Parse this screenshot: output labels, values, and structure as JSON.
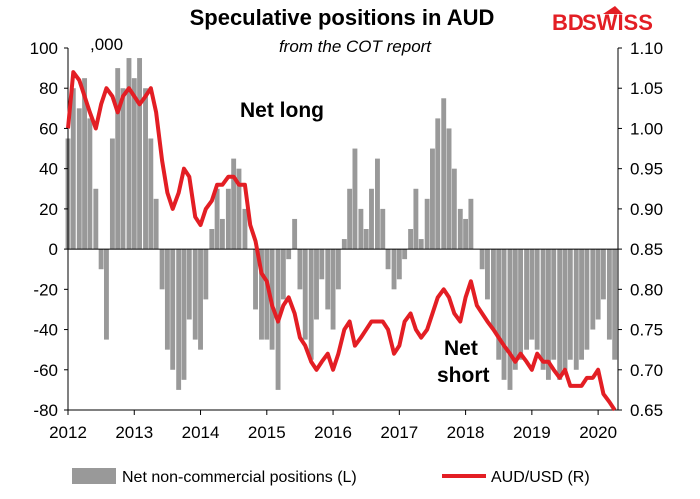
{
  "chart_data": {
    "type": "bar+line",
    "title": "Speculative positions in AUD",
    "subtitle": "from the COT report",
    "left_axis_unit": ",000",
    "ylim_left": [
      -80,
      100
    ],
    "yticks_left": [
      "100",
      "80",
      "60",
      "40",
      "20",
      "0",
      "-20",
      "-40",
      "-60",
      "-80"
    ],
    "ylim_right": [
      0.65,
      1.1
    ],
    "yticks_right": [
      "1.10",
      "1.05",
      "1.00",
      "0.95",
      "0.90",
      "0.85",
      "0.80",
      "0.75",
      "0.70",
      "0.65"
    ],
    "xlim": [
      2012.0,
      2020.3
    ],
    "xticks": [
      "2012",
      "2013",
      "2014",
      "2015",
      "2016",
      "2017",
      "2018",
      "2019",
      "2020"
    ],
    "annotations": {
      "net_long": "Net long",
      "net_short_1": "Net",
      "net_short_2": "short"
    },
    "series": [
      {
        "name": "Net non-commercial positions (L)",
        "kind": "bar",
        "color": "#999999",
        "points": [
          [
            2012.0,
            55
          ],
          [
            2012.08,
            80
          ],
          [
            2012.17,
            70
          ],
          [
            2012.25,
            85
          ],
          [
            2012.33,
            65
          ],
          [
            2012.42,
            30
          ],
          [
            2012.5,
            -10
          ],
          [
            2012.58,
            -45
          ],
          [
            2012.67,
            55
          ],
          [
            2012.75,
            90
          ],
          [
            2012.83,
            80
          ],
          [
            2012.92,
            95
          ],
          [
            2013.0,
            85
          ],
          [
            2013.08,
            95
          ],
          [
            2013.17,
            80
          ],
          [
            2013.25,
            55
          ],
          [
            2013.33,
            25
          ],
          [
            2013.42,
            -20
          ],
          [
            2013.5,
            -50
          ],
          [
            2013.58,
            -60
          ],
          [
            2013.67,
            -70
          ],
          [
            2013.75,
            -65
          ],
          [
            2013.83,
            -35
          ],
          [
            2013.92,
            -45
          ],
          [
            2014.0,
            -50
          ],
          [
            2014.08,
            -25
          ],
          [
            2014.17,
            10
          ],
          [
            2014.25,
            30
          ],
          [
            2014.33,
            15
          ],
          [
            2014.42,
            30
          ],
          [
            2014.5,
            45
          ],
          [
            2014.58,
            40
          ],
          [
            2014.67,
            20
          ],
          [
            2014.75,
            0
          ],
          [
            2014.83,
            -30
          ],
          [
            2014.92,
            -45
          ],
          [
            2015.0,
            -45
          ],
          [
            2015.08,
            -50
          ],
          [
            2015.17,
            -70
          ],
          [
            2015.25,
            -25
          ],
          [
            2015.33,
            -5
          ],
          [
            2015.42,
            15
          ],
          [
            2015.5,
            -20
          ],
          [
            2015.58,
            -45
          ],
          [
            2015.67,
            -55
          ],
          [
            2015.75,
            -35
          ],
          [
            2015.83,
            -15
          ],
          [
            2015.92,
            -30
          ],
          [
            2016.0,
            -40
          ],
          [
            2016.08,
            -20
          ],
          [
            2016.17,
            5
          ],
          [
            2016.25,
            30
          ],
          [
            2016.33,
            50
          ],
          [
            2016.42,
            20
          ],
          [
            2016.5,
            10
          ],
          [
            2016.58,
            30
          ],
          [
            2016.67,
            45
          ],
          [
            2016.75,
            20
          ],
          [
            2016.83,
            -10
          ],
          [
            2016.92,
            -20
          ],
          [
            2017.0,
            -15
          ],
          [
            2017.08,
            -5
          ],
          [
            2017.17,
            10
          ],
          [
            2017.25,
            30
          ],
          [
            2017.33,
            5
          ],
          [
            2017.42,
            25
          ],
          [
            2017.5,
            50
          ],
          [
            2017.58,
            65
          ],
          [
            2017.67,
            75
          ],
          [
            2017.75,
            60
          ],
          [
            2017.83,
            40
          ],
          [
            2017.92,
            20
          ],
          [
            2018.0,
            15
          ],
          [
            2018.08,
            25
          ],
          [
            2018.17,
            0
          ],
          [
            2018.25,
            -10
          ],
          [
            2018.33,
            -25
          ],
          [
            2018.42,
            -40
          ],
          [
            2018.5,
            -55
          ],
          [
            2018.58,
            -65
          ],
          [
            2018.67,
            -70
          ],
          [
            2018.75,
            -60
          ],
          [
            2018.83,
            -55
          ],
          [
            2018.92,
            -50
          ],
          [
            2019.0,
            -45
          ],
          [
            2019.08,
            -50
          ],
          [
            2019.17,
            -60
          ],
          [
            2019.25,
            -65
          ],
          [
            2019.33,
            -55
          ],
          [
            2019.42,
            -65
          ],
          [
            2019.5,
            -60
          ],
          [
            2019.58,
            -55
          ],
          [
            2019.67,
            -60
          ],
          [
            2019.75,
            -55
          ],
          [
            2019.83,
            -50
          ],
          [
            2019.92,
            -40
          ],
          [
            2020.0,
            -35
          ],
          [
            2020.08,
            -25
          ],
          [
            2020.17,
            -45
          ],
          [
            2020.25,
            -55
          ]
        ]
      },
      {
        "name": "AUD/USD (R)",
        "kind": "line",
        "color": "#e31e24",
        "points": [
          [
            2012.0,
            1.0
          ],
          [
            2012.08,
            1.07
          ],
          [
            2012.17,
            1.06
          ],
          [
            2012.25,
            1.04
          ],
          [
            2012.33,
            1.02
          ],
          [
            2012.42,
            1.0
          ],
          [
            2012.5,
            1.03
          ],
          [
            2012.58,
            1.05
          ],
          [
            2012.67,
            1.04
          ],
          [
            2012.75,
            1.02
          ],
          [
            2012.83,
            1.04
          ],
          [
            2012.92,
            1.05
          ],
          [
            2013.0,
            1.04
          ],
          [
            2013.08,
            1.03
          ],
          [
            2013.17,
            1.04
          ],
          [
            2013.25,
            1.05
          ],
          [
            2013.33,
            1.02
          ],
          [
            2013.42,
            0.96
          ],
          [
            2013.5,
            0.92
          ],
          [
            2013.58,
            0.9
          ],
          [
            2013.67,
            0.92
          ],
          [
            2013.75,
            0.95
          ],
          [
            2013.83,
            0.94
          ],
          [
            2013.92,
            0.89
          ],
          [
            2014.0,
            0.88
          ],
          [
            2014.08,
            0.9
          ],
          [
            2014.17,
            0.91
          ],
          [
            2014.25,
            0.93
          ],
          [
            2014.33,
            0.93
          ],
          [
            2014.42,
            0.94
          ],
          [
            2014.5,
            0.94
          ],
          [
            2014.58,
            0.93
          ],
          [
            2014.67,
            0.93
          ],
          [
            2014.75,
            0.88
          ],
          [
            2014.83,
            0.86
          ],
          [
            2014.92,
            0.82
          ],
          [
            2015.0,
            0.81
          ],
          [
            2015.08,
            0.78
          ],
          [
            2015.17,
            0.76
          ],
          [
            2015.25,
            0.78
          ],
          [
            2015.33,
            0.79
          ],
          [
            2015.42,
            0.77
          ],
          [
            2015.5,
            0.74
          ],
          [
            2015.58,
            0.73
          ],
          [
            2015.67,
            0.71
          ],
          [
            2015.75,
            0.7
          ],
          [
            2015.83,
            0.71
          ],
          [
            2015.92,
            0.72
          ],
          [
            2016.0,
            0.7
          ],
          [
            2016.08,
            0.72
          ],
          [
            2016.17,
            0.75
          ],
          [
            2016.25,
            0.76
          ],
          [
            2016.33,
            0.73
          ],
          [
            2016.42,
            0.74
          ],
          [
            2016.5,
            0.75
          ],
          [
            2016.58,
            0.76
          ],
          [
            2016.67,
            0.76
          ],
          [
            2016.75,
            0.76
          ],
          [
            2016.83,
            0.75
          ],
          [
            2016.92,
            0.72
          ],
          [
            2017.0,
            0.73
          ],
          [
            2017.08,
            0.76
          ],
          [
            2017.17,
            0.77
          ],
          [
            2017.25,
            0.75
          ],
          [
            2017.33,
            0.74
          ],
          [
            2017.42,
            0.75
          ],
          [
            2017.5,
            0.77
          ],
          [
            2017.58,
            0.79
          ],
          [
            2017.67,
            0.8
          ],
          [
            2017.75,
            0.79
          ],
          [
            2017.83,
            0.77
          ],
          [
            2017.92,
            0.76
          ],
          [
            2018.0,
            0.79
          ],
          [
            2018.08,
            0.81
          ],
          [
            2018.17,
            0.78
          ],
          [
            2018.25,
            0.77
          ],
          [
            2018.33,
            0.76
          ],
          [
            2018.42,
            0.75
          ],
          [
            2018.5,
            0.74
          ],
          [
            2018.58,
            0.73
          ],
          [
            2018.67,
            0.72
          ],
          [
            2018.75,
            0.71
          ],
          [
            2018.83,
            0.72
          ],
          [
            2018.92,
            0.71
          ],
          [
            2019.0,
            0.7
          ],
          [
            2019.08,
            0.72
          ],
          [
            2019.17,
            0.71
          ],
          [
            2019.25,
            0.71
          ],
          [
            2019.33,
            0.7
          ],
          [
            2019.42,
            0.69
          ],
          [
            2019.5,
            0.7
          ],
          [
            2019.58,
            0.68
          ],
          [
            2019.67,
            0.68
          ],
          [
            2019.75,
            0.68
          ],
          [
            2019.83,
            0.69
          ],
          [
            2019.92,
            0.69
          ],
          [
            2020.0,
            0.7
          ],
          [
            2020.08,
            0.67
          ],
          [
            2020.17,
            0.66
          ],
          [
            2020.25,
            0.65
          ]
        ]
      }
    ],
    "legend_placement": "bottom",
    "grid": false
  },
  "logo": {
    "part1": "BD",
    "part2": "SWISS",
    "color": "#e31e24"
  }
}
